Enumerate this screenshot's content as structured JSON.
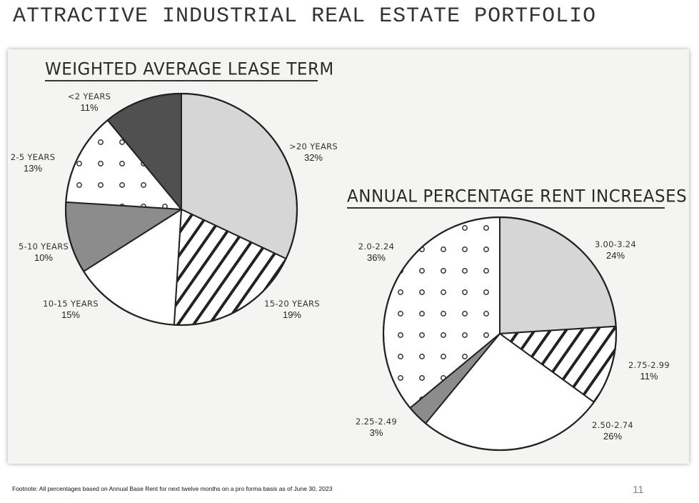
{
  "page": {
    "title": "ATTRACTIVE INDUSTRIAL REAL ESTATE PORTFOLIO",
    "footnote": "Footnote: All percentages based on Annual Base Rent for next twelve months on a pro forma basis as of June 30, 2023",
    "page_number": "11"
  },
  "colors": {
    "light_gray": "#d6d6d6",
    "mid_gray": "#8c8c8c",
    "dark_gray": "#505050",
    "white": "#ffffff",
    "outline": "#222222",
    "panel_background": "#f4f4f3"
  },
  "chart_data": [
    {
      "type": "pie",
      "title": "WEIGHTED AVERAGE LEASE TERM",
      "slices": [
        {
          "label": ">20 YEARS",
          "value": 32,
          "pct_text": "32%",
          "fill": "light-gray"
        },
        {
          "label": "15-20 YEARS",
          "value": 19,
          "pct_text": "19%",
          "fill": "diagonal-stripes"
        },
        {
          "label": "10-15 YEARS",
          "value": 15,
          "pct_text": "15%",
          "fill": "white"
        },
        {
          "label": "5-10 YEARS",
          "value": 10,
          "pct_text": "10%",
          "fill": "mid-gray"
        },
        {
          "label": "2-5 YEARS",
          "value": 13,
          "pct_text": "13%",
          "fill": "dots"
        },
        {
          "label": "<2 YEARS",
          "value": 11,
          "pct_text": "11%",
          "fill": "dark-gray"
        }
      ],
      "start_angle": "12 o'clock",
      "direction": "clockwise",
      "legend": "none (direct labels)"
    },
    {
      "type": "pie",
      "title": "ANNUAL PERCENTAGE RENT INCREASES",
      "slices": [
        {
          "label": "3.00-3.24",
          "value": 24,
          "pct_text": "24%",
          "fill": "light-gray"
        },
        {
          "label": "2.75-2.99",
          "value": 11,
          "pct_text": "11%",
          "fill": "diagonal-stripes"
        },
        {
          "label": "2.50-2.74",
          "value": 26,
          "pct_text": "26%",
          "fill": "white"
        },
        {
          "label": "2.25-2.49",
          "value": 3,
          "pct_text": "3%",
          "fill": "mid-gray"
        },
        {
          "label": "2.0-2.24",
          "value": 36,
          "pct_text": "36%",
          "fill": "dots"
        }
      ],
      "start_angle": "12 o'clock",
      "direction": "clockwise",
      "legend": "none (direct labels)"
    }
  ]
}
